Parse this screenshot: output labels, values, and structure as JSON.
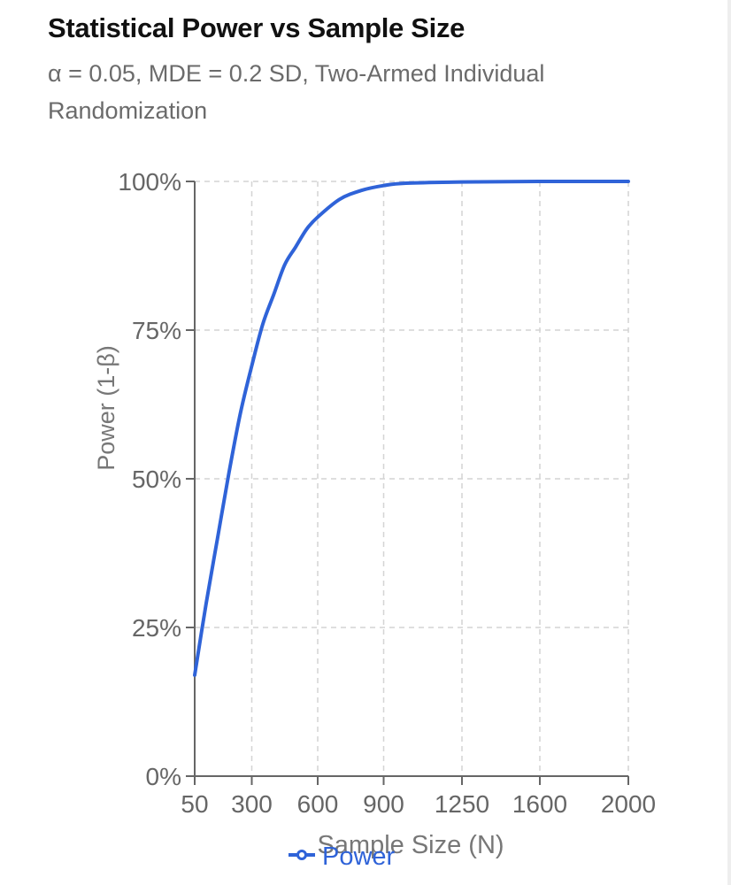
{
  "chart_data": {
    "type": "line",
    "title": "Statistical Power vs Sample Size",
    "subtitle": "α = 0.05, MDE = 0.2 SD, Two-Armed Individual Randomization",
    "xlabel": "Sample Size (N)",
    "ylabel": "Power (1-β)",
    "x_ticks": [
      "50",
      "300",
      "600",
      "900",
      "1250",
      "1600",
      "2000"
    ],
    "y_ticks": [
      "0%",
      "25%",
      "50%",
      "75%",
      "100%"
    ],
    "ylim": [
      0,
      100
    ],
    "grid": true,
    "legend_position": "bottom",
    "series": [
      {
        "name": "Power",
        "color": "#2f63d8",
        "x": [
          50,
          100,
          150,
          200,
          250,
          300,
          350,
          400,
          450,
          500,
          550,
          600,
          700,
          800,
          900,
          1000,
          1250,
          1600,
          2000
        ],
        "y": [
          17,
          29,
          40,
          51,
          61,
          69,
          76,
          81,
          86,
          89,
          92,
          94,
          97,
          98.5,
          99.3,
          99.7,
          99.9,
          100,
          100
        ]
      }
    ]
  }
}
